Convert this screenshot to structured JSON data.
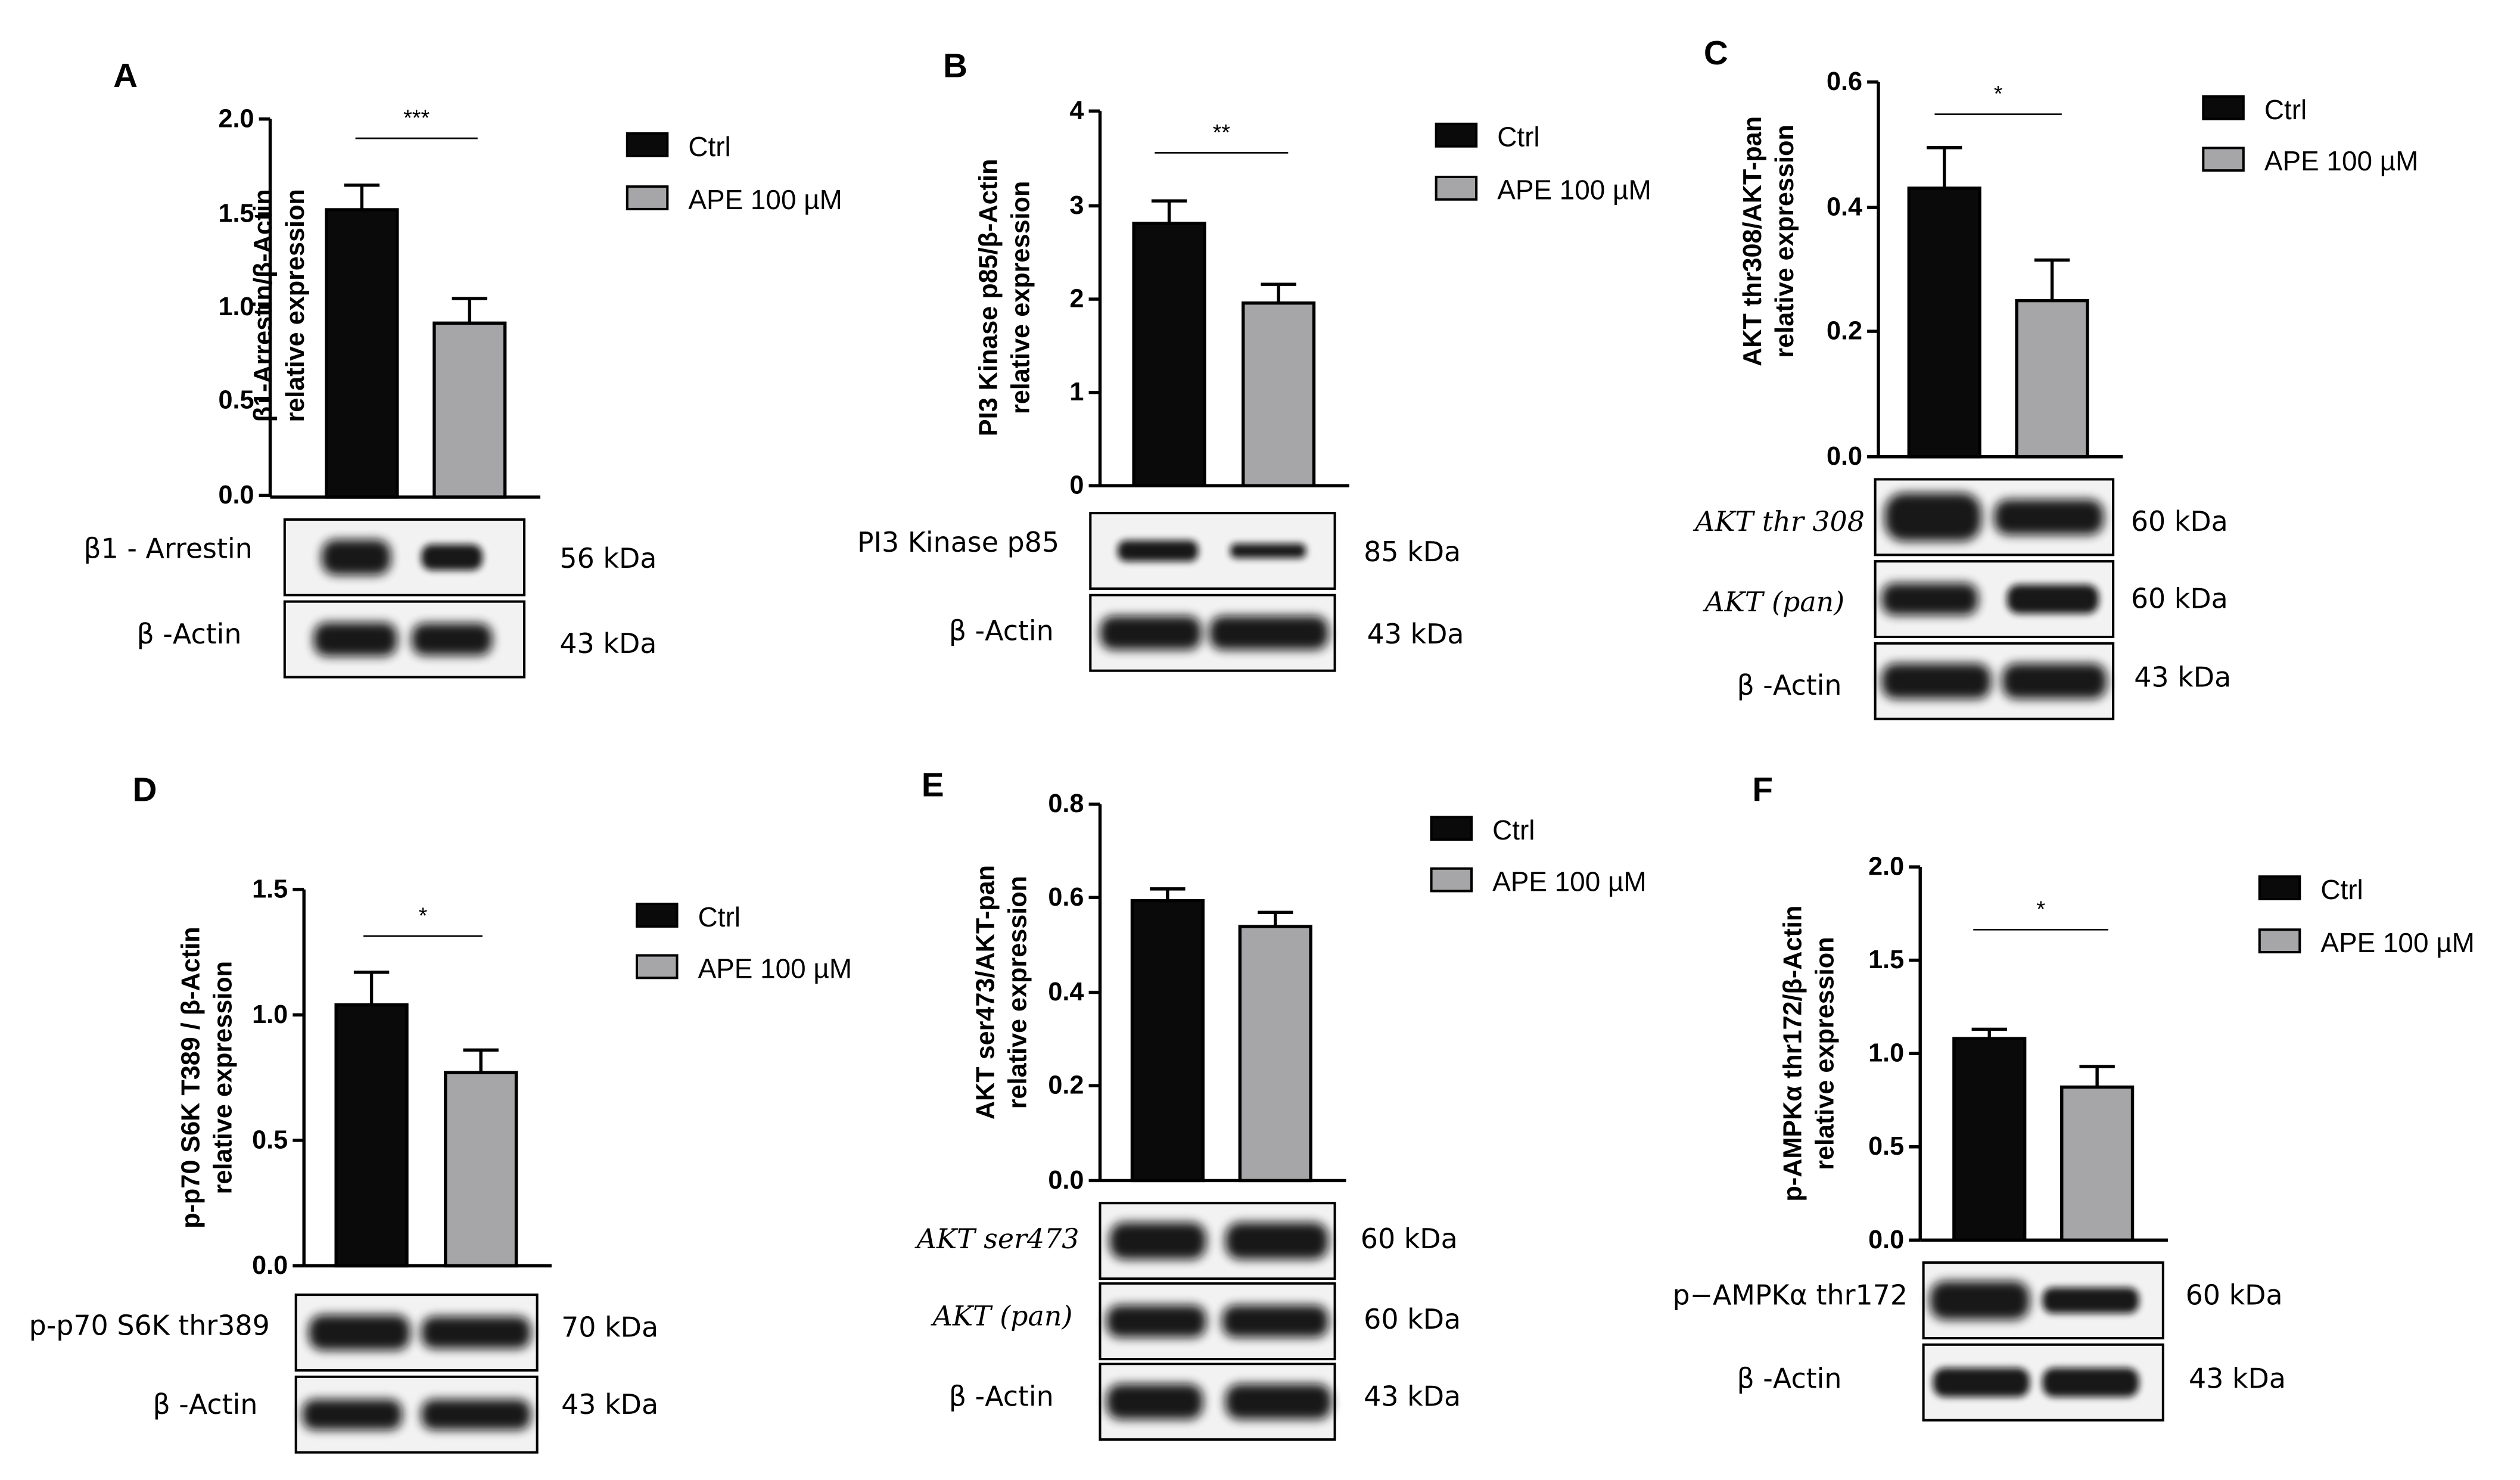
{
  "chart_data": [
    {
      "panel": "A",
      "type": "bar",
      "categories": [
        "Ctrl",
        "APE 100 µM"
      ],
      "values": [
        1.52,
        0.92
      ],
      "errors": [
        0.13,
        0.13
      ],
      "ylabel_line1": "β1-Arrestin/β-Actin",
      "ylabel_line2": "relative expression",
      "ylim": [
        0,
        2.0
      ],
      "yticks": [
        "0.0",
        "0.5",
        "1.0",
        "1.5",
        "2.0"
      ],
      "significance": "***",
      "legend": [
        "Ctrl",
        "APE 100 µM"
      ],
      "blots": [
        {
          "label": "β1 - Arrestin",
          "kda": "56 kDa"
        },
        {
          "label": "β -Actin",
          "kda": "43 kDa"
        }
      ]
    },
    {
      "panel": "B",
      "type": "bar",
      "categories": [
        "Ctrl",
        "APE 100 µM"
      ],
      "values": [
        2.8,
        1.95
      ],
      "errors": [
        0.24,
        0.2
      ],
      "ylabel_line1": "PI3 Kinase p85/β-Actin",
      "ylabel_line2": "relative expression",
      "ylim": [
        0,
        4
      ],
      "yticks": [
        "0",
        "1",
        "2",
        "3",
        "4"
      ],
      "significance": "**",
      "legend": [
        "Ctrl",
        "APE 100 µM"
      ],
      "blots": [
        {
          "label": "PI3 Kinase p85",
          "kda": "85 kDa"
        },
        {
          "label": "β -Actin",
          "kda": "43 kDa"
        }
      ]
    },
    {
      "panel": "C",
      "type": "bar",
      "categories": [
        "Ctrl",
        "APE 100 µM"
      ],
      "values": [
        0.43,
        0.25
      ],
      "errors": [
        0.065,
        0.065
      ],
      "ylabel_line1": "AKT thr308/AKT-pan",
      "ylabel_line2": "relative expression",
      "ylim": [
        0,
        0.6
      ],
      "yticks": [
        "0.0",
        "0.2",
        "0.4",
        "0.6"
      ],
      "significance": "*",
      "legend": [
        "Ctrl",
        "APE 100 µM"
      ],
      "blots": [
        {
          "label": "AKT thr 308",
          "kda": "60 kDa"
        },
        {
          "label": "AKT (pan)",
          "kda": "60 kDa"
        },
        {
          "label": "β -Actin",
          "kda": "43 kDa"
        }
      ]
    },
    {
      "panel": "D",
      "type": "bar",
      "categories": [
        "Ctrl",
        "APE 100 µM"
      ],
      "values": [
        1.04,
        0.77
      ],
      "errors": [
        0.13,
        0.09
      ],
      "ylabel_line1": "p-p70 S6K T389 / β-Actin",
      "ylabel_line2": "relative expression",
      "ylim": [
        0,
        1.5
      ],
      "yticks": [
        "0.0",
        "0.5",
        "1.0",
        "1.5"
      ],
      "significance": "*",
      "legend": [
        "Ctrl",
        "APE 100 µM"
      ],
      "blots": [
        {
          "label": "p-p70 S6K thr389",
          "kda": "70 kDa"
        },
        {
          "label": "β -Actin",
          "kda": "43 kDa"
        }
      ]
    },
    {
      "panel": "E",
      "type": "bar",
      "categories": [
        "Ctrl",
        "APE 100 µM"
      ],
      "values": [
        0.595,
        0.54
      ],
      "errors": [
        0.025,
        0.03
      ],
      "ylabel_line1": "AKT ser473/AKT-pan",
      "ylabel_line2": "relative expression",
      "ylim": [
        0,
        0.8
      ],
      "yticks": [
        "0.0",
        "0.2",
        "0.4",
        "0.6",
        "0.8"
      ],
      "significance": "",
      "legend": [
        "Ctrl",
        "APE 100 µM"
      ],
      "blots": [
        {
          "label": "AKT ser473",
          "kda": "60 kDa"
        },
        {
          "label": "AKT (pan)",
          "kda": "60 kDa"
        },
        {
          "label": "β -Actin",
          "kda": "43 kDa"
        }
      ]
    },
    {
      "panel": "F",
      "type": "bar",
      "categories": [
        "Ctrl",
        "APE 100 µM"
      ],
      "values": [
        1.08,
        0.82
      ],
      "errors": [
        0.05,
        0.11
      ],
      "ylabel_line1": "p-AMPKα thr172/β-Actin",
      "ylabel_line2": "relative expression",
      "ylim": [
        0,
        2.0
      ],
      "yticks": [
        "0.0",
        "0.5",
        "1.0",
        "1.5",
        "2.0"
      ],
      "significance": "*",
      "legend": [
        "Ctrl",
        "APE 100 µM"
      ],
      "blots": [
        {
          "label": "p−AMPKα thr172",
          "kda": "60 kDa"
        },
        {
          "label": "β -Actin",
          "kda": "43 kDa"
        }
      ]
    }
  ],
  "colors": {
    "ctrl": "#0a0a0a",
    "ape": "#a6a6a8"
  }
}
